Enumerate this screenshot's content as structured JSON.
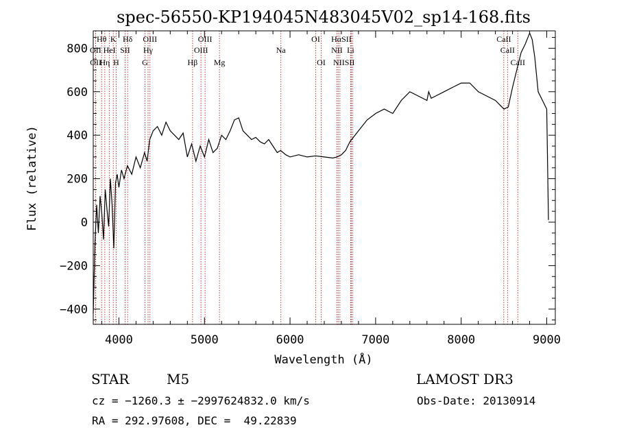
{
  "chart_data": {
    "type": "line",
    "title": "spec-56550-KP194045N483045V02_sp14-168.fits",
    "xlabel": "Wavelength (Å)",
    "ylabel": "Flux (relative)",
    "xlim": [
      3700,
      9100
    ],
    "ylim": [
      -470,
      880
    ],
    "x_ticks": [
      4000,
      5000,
      6000,
      7000,
      8000,
      9000
    ],
    "y_ticks": [
      -400,
      -200,
      0,
      200,
      400,
      600,
      800
    ],
    "grid": false,
    "series": [
      {
        "x": [
          3700,
          3720,
          3740,
          3760,
          3780,
          3800,
          3820,
          3840,
          3860,
          3880,
          3900,
          3920,
          3940,
          3960,
          3980,
          4000,
          4030,
          4060,
          4100,
          4150,
          4200,
          4250,
          4300,
          4330,
          4360,
          4400,
          4450,
          4500,
          4550,
          4600,
          4650,
          4700,
          4750,
          4800,
          4850,
          4900,
          4950,
          5000,
          5050,
          5100,
          5150,
          5200,
          5250,
          5300,
          5350,
          5400,
          5450,
          5500,
          5550,
          5600,
          5650,
          5700,
          5750,
          5800,
          5850,
          5890,
          5950,
          6000,
          6100,
          6200,
          6300,
          6400,
          6500,
          6550,
          6600,
          6650,
          6700,
          6800,
          6900,
          7000,
          7100,
          7200,
          7300,
          7400,
          7500,
          7600,
          7620,
          7650,
          7700,
          7800,
          7900,
          8000,
          8100,
          8200,
          8300,
          8400,
          8500,
          8550,
          8600,
          8650,
          8700,
          8750,
          8800,
          8830,
          8860,
          8900,
          8950,
          9000,
          9020
        ],
        "y": [
          -420,
          -100,
          80,
          -50,
          120,
          40,
          -80,
          150,
          60,
          -20,
          200,
          80,
          -120,
          180,
          220,
          160,
          240,
          200,
          260,
          220,
          300,
          250,
          320,
          280,
          380,
          420,
          440,
          400,
          460,
          420,
          400,
          380,
          410,
          300,
          360,
          280,
          350,
          300,
          380,
          320,
          340,
          400,
          380,
          420,
          470,
          480,
          420,
          400,
          380,
          390,
          370,
          360,
          380,
          350,
          320,
          330,
          310,
          300,
          310,
          300,
          305,
          300,
          295,
          300,
          310,
          330,
          370,
          420,
          470,
          500,
          520,
          500,
          560,
          600,
          580,
          560,
          600,
          570,
          580,
          600,
          620,
          640,
          640,
          600,
          580,
          560,
          520,
          530,
          620,
          700,
          780,
          820,
          870,
          840,
          760,
          600,
          560,
          520,
          10
        ]
      }
    ],
    "lines": [
      {
        "name": "Hθ",
        "x": 3798
      },
      {
        "name": "OII",
        "x": 3727
      },
      {
        "name": "OII",
        "x": 3729
      },
      {
        "name": "Hη",
        "x": 3835
      },
      {
        "name": "HeI",
        "x": 3889
      },
      {
        "name": "K",
        "x": 3934
      },
      {
        "name": "H",
        "x": 3968
      },
      {
        "name": "SII",
        "x": 4072
      },
      {
        "name": "Hδ",
        "x": 4102
      },
      {
        "name": "Hγ",
        "x": 4341
      },
      {
        "name": "G",
        "x": 4305
      },
      {
        "name": "OIII",
        "x": 4363
      },
      {
        "name": "Hβ",
        "x": 4861
      },
      {
        "name": "OIII",
        "x": 4959
      },
      {
        "name": "OIII",
        "x": 5007
      },
      {
        "name": "Mg",
        "x": 5175
      },
      {
        "name": "Na",
        "x": 5893
      },
      {
        "name": "OI",
        "x": 6300
      },
      {
        "name": "OI",
        "x": 6364
      },
      {
        "name": "NII",
        "x": 6548
      },
      {
        "name": "Hα",
        "x": 6563
      },
      {
        "name": "NII",
        "x": 6583
      },
      {
        "name": "Li",
        "x": 6708
      },
      {
        "name": "SII",
        "x": 6716
      },
      {
        "name": "SII",
        "x": 6731
      },
      {
        "name": "CaII",
        "x": 8498
      },
      {
        "name": "CaII",
        "x": 8542
      },
      {
        "name": "CaII",
        "x": 8662
      }
    ],
    "line_labels": [
      {
        "text": "Hθ",
        "x": 3798,
        "row": 1
      },
      {
        "text": "K",
        "x": 3934,
        "row": 1
      },
      {
        "text": "Hδ",
        "x": 4102,
        "row": 1
      },
      {
        "text": "OIII",
        "x": 4363,
        "row": 1
      },
      {
        "text": "OIII",
        "x": 5007,
        "row": 1
      },
      {
        "text": "OI",
        "x": 6300,
        "row": 1
      },
      {
        "text": "HαSII",
        "x": 6600,
        "row": 1
      },
      {
        "text": "CaII",
        "x": 8498,
        "row": 1
      },
      {
        "text": "OII",
        "x": 3727,
        "row": 2
      },
      {
        "text": "HeI",
        "x": 3889,
        "row": 2
      },
      {
        "text": "SII",
        "x": 4072,
        "row": 2
      },
      {
        "text": "Hγ",
        "x": 4341,
        "row": 2
      },
      {
        "text": "OIII",
        "x": 4959,
        "row": 2
      },
      {
        "text": "Na",
        "x": 5893,
        "row": 2
      },
      {
        "text": "NII",
        "x": 6548,
        "row": 2
      },
      {
        "text": "Li",
        "x": 6708,
        "row": 2
      },
      {
        "text": "CaII",
        "x": 8542,
        "row": 2
      },
      {
        "text": "OII",
        "x": 3729,
        "row": 3
      },
      {
        "text": "Hη",
        "x": 3835,
        "row": 3
      },
      {
        "text": "H",
        "x": 3968,
        "row": 3
      },
      {
        "text": "G",
        "x": 4305,
        "row": 3
      },
      {
        "text": "Hβ",
        "x": 4861,
        "row": 3
      },
      {
        "text": "Mg",
        "x": 5175,
        "row": 3
      },
      {
        "text": "OI",
        "x": 6364,
        "row": 3
      },
      {
        "text": "NIISII",
        "x": 6630,
        "row": 3
      },
      {
        "text": "CaII",
        "x": 8662,
        "row": 3
      }
    ]
  },
  "info": {
    "object_class": "STAR",
    "subclass": "M5",
    "survey": "LAMOST DR3",
    "cz_line": "cz = −1260.3 ± −2997624832.0 km/s",
    "obs_date": "Obs-Date: 20130914",
    "radec_line": "RA = 292.97608, DEC =  49.22839"
  }
}
